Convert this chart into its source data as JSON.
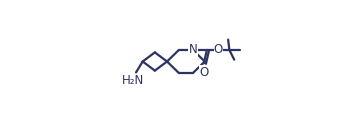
{
  "line_color": "#2d3464",
  "bg_color": "#ffffff",
  "line_width": 1.6,
  "font_size": 8.5,
  "figsize": [
    3.62,
    1.23
  ],
  "dpi": 100,
  "xlim": [
    0.0,
    1.0
  ],
  "ylim": [
    0.0,
    1.0
  ]
}
